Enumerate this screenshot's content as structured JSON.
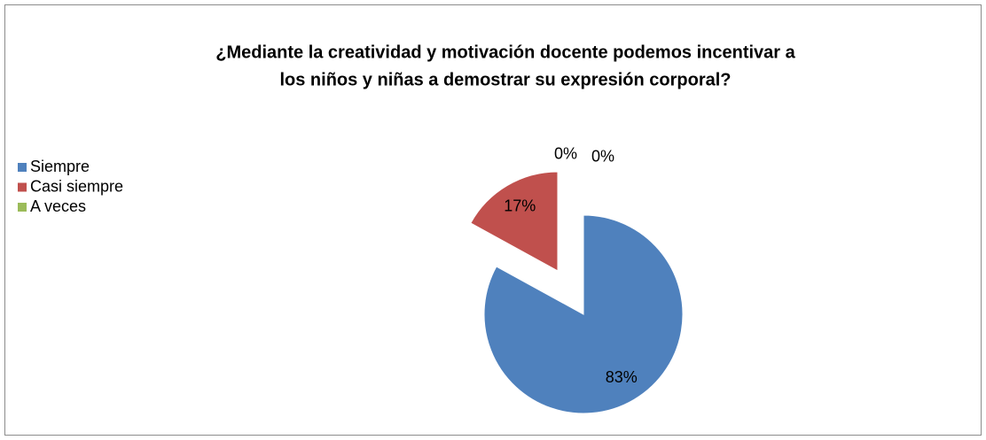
{
  "chart_data": {
    "type": "pie",
    "title": [
      "¿Mediante la creatividad y motivación docente podemos incentivar a",
      "los niños y niñas a demostrar su expresión corporal?"
    ],
    "categories": [
      "Siempre",
      "Casi siempre",
      "A veces",
      null
    ],
    "values": [
      83,
      17,
      0,
      0
    ],
    "value_labels": [
      "83%",
      "17%",
      "0%",
      "0%"
    ],
    "colors": [
      "#4f81bd",
      "#c0504d",
      "#9bbb59",
      "#8064a2"
    ],
    "legend": "left"
  }
}
